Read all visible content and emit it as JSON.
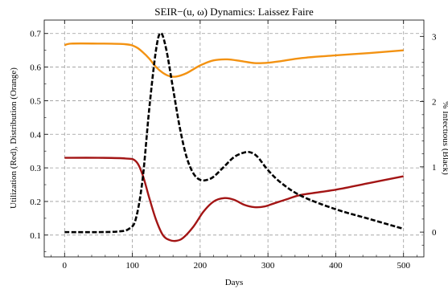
{
  "chart_data": {
    "type": "line",
    "title": "SEIR−(u, ω) Dynamics: Laissez Faire",
    "xlabel": "Days",
    "ylabel_left": "Utilization (Red), Distribution (Orange)",
    "ylabel_right": "% Infectious (Black)",
    "xlim": [
      -30,
      530
    ],
    "ylim_left": [
      0.035,
      0.74
    ],
    "ylim_right": [
      -0.38,
      3.25
    ],
    "grid": true,
    "x_ticks": [
      0,
      100,
      200,
      300,
      400,
      500
    ],
    "x_tick_labels": [
      "0",
      "100",
      "200",
      "300",
      "400",
      "500"
    ],
    "y_left_ticks": [
      0.1,
      0.2,
      0.3,
      0.4,
      0.5,
      0.6,
      0.7
    ],
    "y_left_tick_labels": [
      "0.1",
      "0.2",
      "0.3",
      "0.4",
      "0.5",
      "0.6",
      "0.7"
    ],
    "y_right_ticks": [
      0,
      1,
      2,
      3
    ],
    "y_right_tick_labels": [
      "0",
      "1",
      "2",
      "3"
    ],
    "colors": {
      "utilization": "#a31515",
      "distribution": "#f39212",
      "infectious": "#000000",
      "grid": "#9a9a9a"
    },
    "series": [
      {
        "axis": "left",
        "color": "#a31515",
        "style": "solid",
        "x": [
          0,
          50,
          90,
          105,
          115,
          125,
          135,
          145,
          155,
          165,
          175,
          190,
          205,
          220,
          235,
          250,
          265,
          280,
          295,
          310,
          330,
          350,
          400,
          450,
          500
        ],
        "y": [
          0.33,
          0.33,
          0.328,
          0.32,
          0.28,
          0.21,
          0.145,
          0.1,
          0.085,
          0.083,
          0.092,
          0.125,
          0.17,
          0.2,
          0.21,
          0.205,
          0.19,
          0.183,
          0.185,
          0.195,
          0.208,
          0.22,
          0.235,
          0.255,
          0.275
        ]
      },
      {
        "axis": "left",
        "color": "#f39212",
        "style": "solid",
        "x": [
          0,
          10,
          50,
          90,
          105,
          115,
          125,
          135,
          145,
          155,
          165,
          180,
          200,
          220,
          240,
          260,
          280,
          300,
          320,
          350,
          400,
          450,
          500
        ],
        "y": [
          0.665,
          0.67,
          0.67,
          0.668,
          0.66,
          0.645,
          0.625,
          0.6,
          0.583,
          0.573,
          0.572,
          0.582,
          0.605,
          0.62,
          0.623,
          0.618,
          0.612,
          0.613,
          0.618,
          0.627,
          0.635,
          0.642,
          0.65
        ]
      },
      {
        "axis": "right",
        "color": "#000000",
        "style": "dashed",
        "x": [
          0,
          50,
          80,
          95,
          105,
          115,
          125,
          135,
          142,
          150,
          160,
          170,
          180,
          190,
          200,
          210,
          220,
          235,
          250,
          265,
          275,
          285,
          300,
          320,
          350,
          400,
          450,
          500
        ],
        "y": [
          0,
          0,
          0.01,
          0.05,
          0.2,
          0.8,
          1.9,
          2.8,
          3.05,
          2.8,
          2.2,
          1.6,
          1.15,
          0.9,
          0.8,
          0.8,
          0.85,
          1.0,
          1.15,
          1.22,
          1.22,
          1.15,
          0.95,
          0.75,
          0.55,
          0.35,
          0.2,
          0.05
        ]
      }
    ]
  }
}
